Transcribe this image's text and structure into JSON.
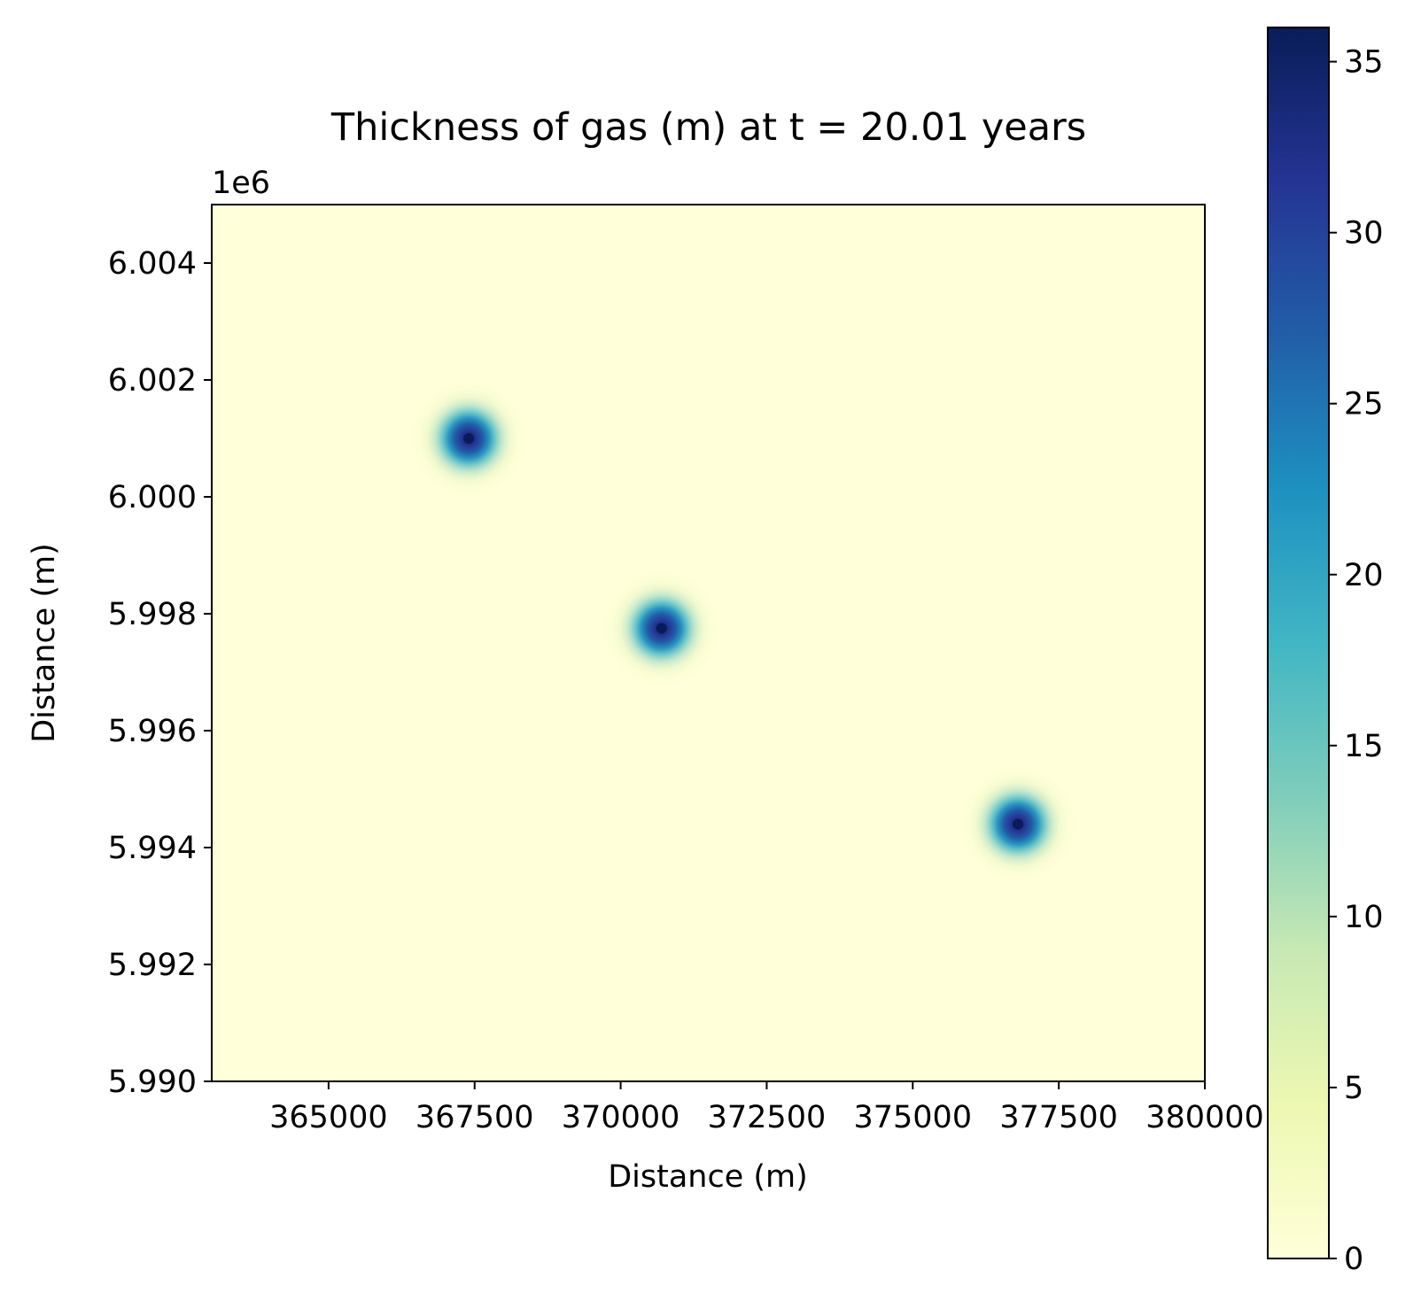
{
  "chart_data": {
    "type": "heatmap",
    "title": "Thickness of gas (m) at t = 20.01 years",
    "xlabel": "Distance (m)",
    "ylabel": "Distance (m)",
    "y_offset_label": "1e6",
    "xlim": [
      363000,
      380000
    ],
    "ylim": [
      5.99,
      6.005
    ],
    "x_ticks": [
      365000,
      367500,
      370000,
      372500,
      375000,
      377500,
      380000
    ],
    "x_tick_labels": [
      "365000",
      "367500",
      "370000",
      "372500",
      "375000",
      "377500",
      "380000"
    ],
    "y_ticks": [
      5.99,
      5.992,
      5.994,
      5.996,
      5.998,
      6.0,
      6.002,
      6.004
    ],
    "y_tick_labels": [
      "5.990",
      "5.992",
      "5.994",
      "5.996",
      "5.998",
      "6.000",
      "6.002",
      "6.004"
    ],
    "grid": false,
    "colormap": "YlGnBu",
    "colormap_stops": [
      "#ffffd9",
      "#edf8b1",
      "#c7e9b4",
      "#7fcdbb",
      "#41b6c4",
      "#1d91c0",
      "#225ea8",
      "#253494",
      "#081d58"
    ],
    "colorbar": {
      "range": [
        0,
        36
      ],
      "ticks": [
        0,
        5,
        10,
        15,
        20,
        25,
        30,
        35
      ],
      "tick_labels": [
        "0",
        "5",
        "10",
        "15",
        "20",
        "25",
        "30",
        "35"
      ]
    },
    "plumes": [
      {
        "x": 367400,
        "y": 6.001,
        "peak": 36
      },
      {
        "x": 370700,
        "y": 5.99775,
        "peak": 36
      },
      {
        "x": 376800,
        "y": 5.9944,
        "peak": 36
      }
    ]
  }
}
